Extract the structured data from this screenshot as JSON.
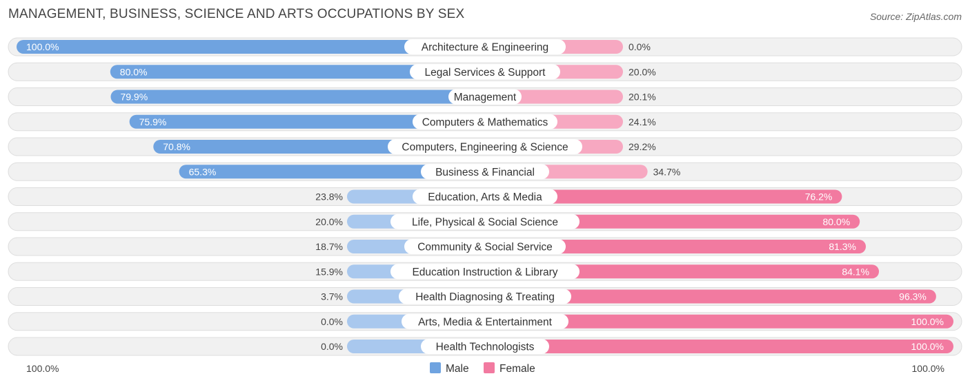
{
  "title": "MANAGEMENT, BUSINESS, SCIENCE AND ARTS OCCUPATIONS BY SEX",
  "source": "Source: ZipAtlas.com",
  "colors": {
    "male_strong": "#6fa3e0",
    "male_light": "#a9c8ee",
    "female_strong": "#f27aa0",
    "female_light": "#f7a8c1",
    "track": "#f1f1f1"
  },
  "chart_data": {
    "type": "bar",
    "orientation": "horizontal-diverging",
    "title": "MANAGEMENT, BUSINESS, SCIENCE AND ARTS OCCUPATIONS BY SEX",
    "categories": [
      "Architecture & Engineering",
      "Legal Services & Support",
      "Management",
      "Computers & Mathematics",
      "Computers, Engineering & Science",
      "Business & Financial",
      "Education, Arts & Media",
      "Life, Physical & Social Science",
      "Community & Social Service",
      "Education Instruction & Library",
      "Health Diagnosing & Treating",
      "Arts, Media & Entertainment",
      "Health Technologists"
    ],
    "series": [
      {
        "name": "Male",
        "values": [
          100.0,
          80.0,
          79.9,
          75.9,
          70.8,
          65.3,
          23.8,
          20.0,
          18.7,
          15.9,
          3.7,
          0.0,
          0.0
        ],
        "labels": [
          "100.0%",
          "80.0%",
          "79.9%",
          "75.9%",
          "70.8%",
          "65.3%",
          "23.8%",
          "20.0%",
          "18.7%",
          "15.9%",
          "3.7%",
          "0.0%",
          "0.0%"
        ]
      },
      {
        "name": "Female",
        "values": [
          0.0,
          20.0,
          20.1,
          24.1,
          29.2,
          34.7,
          76.2,
          80.0,
          81.3,
          84.1,
          96.3,
          100.0,
          100.0
        ],
        "labels": [
          "0.0%",
          "20.0%",
          "20.1%",
          "24.1%",
          "29.2%",
          "34.7%",
          "76.2%",
          "80.0%",
          "81.3%",
          "84.1%",
          "96.3%",
          "100.0%",
          "100.0%"
        ]
      }
    ],
    "xlim": [
      0,
      100
    ],
    "axis_left_label": "100.0%",
    "axis_right_label": "100.0%",
    "legend": {
      "position": "bottom-center",
      "entries": [
        "Male",
        "Female"
      ]
    }
  }
}
